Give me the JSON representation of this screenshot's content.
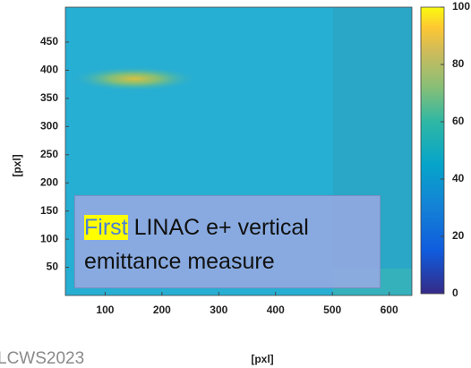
{
  "chart_data": {
    "type": "heatmap",
    "xlabel": "[pxl]",
    "ylabel": "[pxl]",
    "xlim": [
      30,
      640
    ],
    "xticks": [
      100,
      200,
      300,
      400,
      500,
      600
    ],
    "ylim": [
      0,
      512
    ],
    "yticks": [
      50,
      100,
      150,
      200,
      250,
      300,
      350,
      400,
      450
    ],
    "colorbar": {
      "lim": [
        0,
        100
      ],
      "ticks": [
        0,
        20,
        40,
        60,
        80,
        100
      ]
    },
    "annotation": {
      "highlighted": "First",
      "lines": [
        "LINAC e+ vertical",
        "emittance measure"
      ]
    }
  },
  "footer": "LCWS2023"
}
